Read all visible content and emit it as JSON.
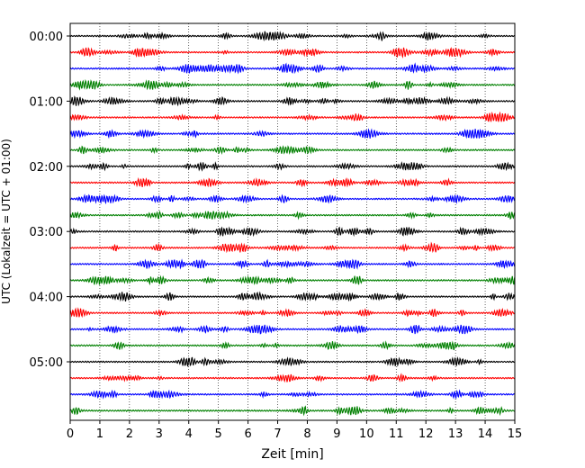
{
  "chart_data": {
    "type": "line",
    "title": "",
    "xlabel": "Zeit  [min]",
    "ylabel": "UTC (Lokalzeit = UTC + 01:00)",
    "xlim": [
      0,
      15
    ],
    "x_ticks": [
      "0",
      "1",
      "2",
      "3",
      "4",
      "5",
      "6",
      "7",
      "8",
      "9",
      "10",
      "11",
      "12",
      "13",
      "14",
      "15"
    ],
    "y_tick_labels": [
      "00:00",
      "01:00",
      "02:00",
      "03:00",
      "04:00",
      "05:00"
    ],
    "trace_interval_minutes": 15,
    "trace_count": 24,
    "trace_colors": [
      "#000000",
      "#ff0000",
      "#0000ff",
      "#008000"
    ],
    "grid_x": true,
    "grid_style": "dotted"
  }
}
